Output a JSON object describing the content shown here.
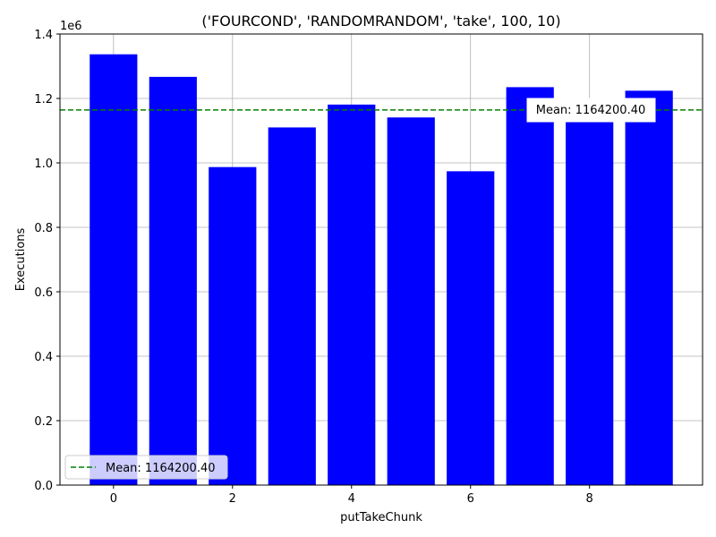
{
  "chart_data": {
    "type": "bar",
    "title": "('FOURCOND', 'RANDOMRANDOM', 'take', 100, 10)",
    "xlabel": "putTakeChunk",
    "ylabel": "Executions",
    "y_offset_label": "1e6",
    "categories": [
      0,
      1,
      2,
      3,
      4,
      5,
      6,
      7,
      8,
      9
    ],
    "values": [
      1337000,
      1267000,
      987000,
      1110000,
      1181000,
      1141000,
      974000,
      1235000,
      1186000,
      1224000
    ],
    "xlim": [
      -0.9,
      9.9
    ],
    "ylim": [
      0,
      1400000
    ],
    "x_ticks": [
      0,
      2,
      4,
      6,
      8
    ],
    "y_ticks": [
      0,
      200000,
      400000,
      600000,
      800000,
      1000000,
      1200000,
      1400000
    ],
    "y_tick_labels": [
      "0.0",
      "0.2",
      "0.4",
      "0.6",
      "0.8",
      "1.0",
      "1.2",
      "1.4"
    ],
    "bar_color": "#0000ff",
    "mean": 1164200.4,
    "mean_color": "#008000",
    "mean_annotation": "Mean: 1164200.40",
    "legend": {
      "label": "Mean: 1164200.40",
      "placement": "lower left"
    },
    "grid": true
  }
}
